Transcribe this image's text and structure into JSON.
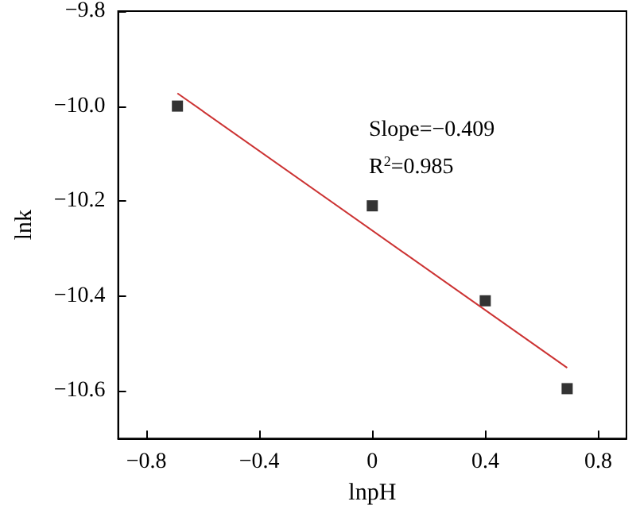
{
  "chart_data": {
    "type": "scatter",
    "xlabel": "lnpH",
    "ylabel": "lnk",
    "annotations": [
      "Slope=−0.409",
      "R$^{2}$=0.985"
    ],
    "series": [
      {
        "color": "#000000",
        "marker": "square",
        "x": [
          -0.69,
          0,
          0.4,
          0.69
        ],
        "values": [
          -10.0,
          -10.21,
          -10.41,
          -10.595
        ]
      },
      {
        "type": "line",
        "color": "#cc3333",
        "marker": "none",
        "x": [
          -0.69,
          0.69
        ],
        "values": [
          -9.973,
          -10.551
        ]
      }
    ],
    "xlim": [
      -0.9,
      0.9
    ],
    "xticks": [
      {
        "value": -0.8,
        "label": "−0.8"
      },
      {
        "value": -0.4,
        "label": "−0.4"
      },
      0,
      0.4,
      0.8
    ],
    "ylim": [
      -10.7,
      -9.8
    ],
    "yticks": [
      {
        "value": -10.6,
        "label": "−10.6"
      },
      {
        "value": -10.4,
        "label": "−10.4"
      },
      {
        "value": -10.2,
        "label": "−10.2"
      },
      {
        "value": -10.0,
        "label": "−10.0"
      },
      {
        "value": -9.8,
        "label": "−9.8"
      }
    ],
    "grid": false
  }
}
